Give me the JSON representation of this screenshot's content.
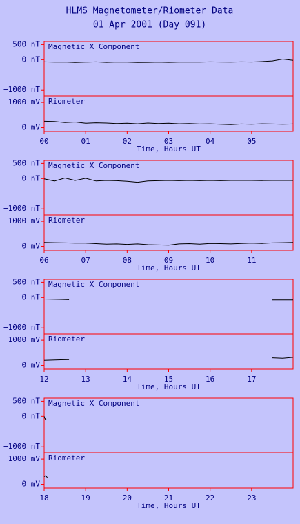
{
  "header": {
    "title": "HLMS Magnetometer/Riometer Data",
    "subtitle": "01 Apr 2001 (Day 091)"
  },
  "chart_data": [
    {
      "type": "line",
      "title": "Magnetic X Component",
      "color": "#000000",
      "xlim": [
        0,
        6
      ],
      "ylim": [
        -1200,
        600
      ],
      "yticks": [
        {
          "value": 500,
          "label": "500 nT"
        },
        {
          "value": 0,
          "label": "0 nT"
        },
        {
          "value": -1000,
          "label": "−1000 nT"
        }
      ],
      "x": [
        0,
        0.25,
        0.5,
        0.75,
        1,
        1.25,
        1.5,
        1.75,
        2,
        2.25,
        2.5,
        2.75,
        3,
        3.25,
        3.5,
        3.75,
        4,
        4.25,
        4.5,
        4.75,
        5,
        5.25,
        5.5,
        5.75,
        6
      ],
      "values": [
        -70,
        -80,
        -75,
        -90,
        -80,
        -70,
        -85,
        -75,
        -80,
        -90,
        -85,
        -80,
        -85,
        -80,
        -75,
        -80,
        -70,
        -75,
        -80,
        -70,
        -75,
        -60,
        -40,
        20,
        -20
      ]
    },
    {
      "type": "line",
      "title": "Riometer",
      "color": "#000000",
      "xlim": [
        0,
        6
      ],
      "ylim": [
        -150,
        1250
      ],
      "yticks": [
        {
          "value": 1000,
          "label": "1000 mV"
        },
        {
          "value": 0,
          "label": "0 mV"
        }
      ],
      "xticks": [
        {
          "value": 0,
          "label": "00"
        },
        {
          "value": 1,
          "label": "01"
        },
        {
          "value": 2,
          "label": "02"
        },
        {
          "value": 3,
          "label": "03"
        },
        {
          "value": 4,
          "label": "04"
        },
        {
          "value": 5,
          "label": "05"
        }
      ],
      "xlabel": "Time, Hours UT",
      "x": [
        0,
        0.25,
        0.5,
        0.75,
        1,
        1.25,
        1.5,
        1.75,
        2,
        2.25,
        2.5,
        2.75,
        3,
        3.25,
        3.5,
        3.75,
        4,
        4.25,
        4.5,
        4.75,
        5,
        5.25,
        5.5,
        5.75,
        6
      ],
      "values": [
        250,
        240,
        200,
        220,
        170,
        190,
        180,
        160,
        170,
        150,
        180,
        160,
        170,
        150,
        160,
        140,
        150,
        130,
        120,
        140,
        130,
        150,
        140,
        130,
        140
      ]
    },
    {
      "type": "line",
      "title": "Magnetic X Component",
      "color": "#000000",
      "xlim": [
        6,
        12
      ],
      "ylim": [
        -1200,
        600
      ],
      "yticks": [
        {
          "value": 500,
          "label": "500 nT"
        },
        {
          "value": 0,
          "label": "0 nT"
        },
        {
          "value": -1000,
          "label": "−1000 nT"
        }
      ],
      "x": [
        6,
        6.25,
        6.5,
        6.75,
        7,
        7.25,
        7.5,
        7.75,
        8,
        8.25,
        8.5,
        8.75,
        9,
        9.25,
        9.5,
        9.75,
        10,
        10.25,
        10.5,
        10.75,
        11,
        11.25,
        11.5,
        11.75,
        12
      ],
      "values": [
        -10,
        -80,
        20,
        -60,
        10,
        -80,
        -60,
        -70,
        -90,
        -120,
        -80,
        -70,
        -60,
        -70,
        -60,
        -70,
        -60,
        -70,
        -60,
        -60,
        -60,
        -65,
        -60,
        -60,
        -60
      ]
    },
    {
      "type": "line",
      "title": "Riometer",
      "color": "#000000",
      "xlim": [
        6,
        12
      ],
      "ylim": [
        -150,
        1250
      ],
      "yticks": [
        {
          "value": 1000,
          "label": "1000 mV"
        },
        {
          "value": 0,
          "label": "0 mV"
        }
      ],
      "xticks": [
        {
          "value": 6,
          "label": "06"
        },
        {
          "value": 7,
          "label": "07"
        },
        {
          "value": 8,
          "label": "08"
        },
        {
          "value": 9,
          "label": "09"
        },
        10,
        11
      ],
      "xlabel": "Time, Hours UT",
      "x": [
        6,
        6.25,
        6.5,
        6.75,
        7,
        7.25,
        7.5,
        7.75,
        8,
        8.25,
        8.5,
        8.75,
        9,
        9.25,
        9.5,
        9.75,
        10,
        10.25,
        10.5,
        10.75,
        11,
        11.25,
        11.5,
        11.75,
        12
      ],
      "values": [
        160,
        150,
        140,
        130,
        130,
        110,
        90,
        100,
        80,
        100,
        70,
        60,
        50,
        100,
        110,
        90,
        120,
        110,
        100,
        120,
        130,
        120,
        140,
        150,
        160
      ]
    },
    {
      "type": "line",
      "title": "Magnetic X Component",
      "color": "#000000",
      "xlim": [
        12,
        18
      ],
      "ylim": [
        -1200,
        600
      ],
      "yticks": [
        {
          "value": 500,
          "label": "500 nT"
        },
        {
          "value": 0,
          "label": "0 nT"
        },
        {
          "value": -1000,
          "label": "−1000 nT"
        }
      ],
      "x": [
        12,
        12.2,
        12.4,
        12.6,
        15,
        17.5,
        17.75,
        18
      ],
      "values": [
        -50,
        -55,
        -60,
        -70,
        null,
        -80,
        -80,
        -80
      ]
    },
    {
      "type": "line",
      "title": "Riometer",
      "color": "#000000",
      "xlim": [
        12,
        18
      ],
      "ylim": [
        -150,
        1250
      ],
      "yticks": [
        {
          "value": 1000,
          "label": "1000 mV"
        },
        {
          "value": 0,
          "label": "0 mV"
        }
      ],
      "xticks": [
        12,
        13,
        14,
        15,
        16,
        17
      ],
      "xlabel": "Time, Hours UT",
      "x": [
        12,
        12.2,
        12.4,
        12.6,
        15,
        17.5,
        17.75,
        18
      ],
      "values": [
        200,
        210,
        220,
        230,
        null,
        300,
        280,
        320
      ]
    },
    {
      "type": "line",
      "title": "Magnetic X Component",
      "color": "#000000",
      "xlim": [
        18,
        24
      ],
      "ylim": [
        -1200,
        600
      ],
      "yticks": [
        {
          "value": 500,
          "label": "500 nT"
        },
        {
          "value": 0,
          "label": "0 nT"
        },
        {
          "value": -1000,
          "label": "−1000 nT"
        }
      ],
      "x": [
        18,
        18.03,
        18.06
      ],
      "values": [
        0,
        -100,
        -120
      ]
    },
    {
      "type": "line",
      "title": "Riometer",
      "color": "#000000",
      "xlim": [
        18,
        24
      ],
      "ylim": [
        -150,
        1250
      ],
      "yticks": [
        {
          "value": 1000,
          "label": "1000 mV"
        },
        {
          "value": 0,
          "label": "0 mV"
        }
      ],
      "xticks": [
        18,
        19,
        20,
        21,
        22,
        23
      ],
      "xlabel": "Time, Hours UT",
      "x": [
        18,
        18.04,
        18.08
      ],
      "values": [
        300,
        350,
        250
      ]
    }
  ]
}
